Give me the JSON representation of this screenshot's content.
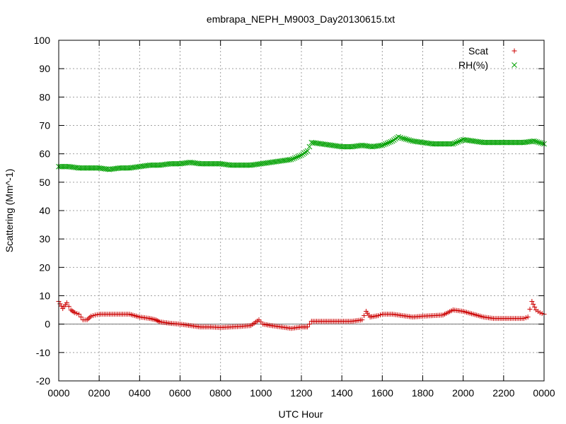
{
  "chart_data": {
    "type": "scatter",
    "title": "embrapa_NEPH_M9003_Day20130615.txt",
    "xlabel": "UTC Hour",
    "ylabel": "Scattering (Mm^-1)",
    "xlim": [
      0,
      24
    ],
    "ylim": [
      -20,
      100
    ],
    "x_ticks": [
      0,
      2,
      4,
      6,
      8,
      10,
      12,
      14,
      16,
      18,
      20,
      22,
      24
    ],
    "x_tick_labels": [
      "0000",
      "0200",
      "0400",
      "0600",
      "0800",
      "1000",
      "1200",
      "1400",
      "1600",
      "1800",
      "2000",
      "2200",
      "0000"
    ],
    "y_ticks": [
      -20,
      -10,
      0,
      10,
      20,
      30,
      40,
      50,
      60,
      70,
      80,
      90,
      100
    ],
    "y_tick_labels": [
      "-20",
      "-10",
      "0",
      "10",
      "20",
      "30",
      "40",
      "50",
      "60",
      "70",
      "80",
      "90",
      "100"
    ],
    "grid": true,
    "legend_position": "top-right",
    "zero_line": true,
    "series": [
      {
        "name": "Scat",
        "marker": "plus",
        "color": "#cc0000",
        "points": [
          [
            0,
            8
          ],
          [
            0.2,
            5.5
          ],
          [
            0.4,
            7.5
          ],
          [
            0.6,
            5
          ],
          [
            0.8,
            4
          ],
          [
            1,
            3.5
          ],
          [
            1.2,
            1.5
          ],
          [
            1.4,
            1.5
          ],
          [
            1.6,
            2.8
          ],
          [
            1.8,
            3.2
          ],
          [
            2,
            3.5
          ],
          [
            2.5,
            3.5
          ],
          [
            3,
            3.5
          ],
          [
            3.5,
            3.5
          ],
          [
            4,
            2.5
          ],
          [
            4.5,
            2
          ],
          [
            4.8,
            1.5
          ],
          [
            5,
            0.8
          ],
          [
            5.5,
            0.3
          ],
          [
            6,
            0
          ],
          [
            6.5,
            -0.5
          ],
          [
            7,
            -1
          ],
          [
            7.5,
            -1
          ],
          [
            8,
            -1.2
          ],
          [
            8.5,
            -1
          ],
          [
            9,
            -0.8
          ],
          [
            9.5,
            -0.5
          ],
          [
            9.9,
            1.5
          ],
          [
            10.1,
            0
          ],
          [
            10.5,
            -0.5
          ],
          [
            11,
            -1
          ],
          [
            11.5,
            -1.5
          ],
          [
            12,
            -1
          ],
          [
            12.3,
            -1
          ],
          [
            12.5,
            1
          ],
          [
            13,
            1
          ],
          [
            13.5,
            1
          ],
          [
            14,
            1
          ],
          [
            14.5,
            1
          ],
          [
            15,
            1.5
          ],
          [
            15.2,
            4.5
          ],
          [
            15.4,
            2.5
          ],
          [
            15.8,
            3
          ],
          [
            16,
            3.5
          ],
          [
            16.5,
            3.5
          ],
          [
            17,
            3
          ],
          [
            17.5,
            2.5
          ],
          [
            18,
            2.8
          ],
          [
            18.5,
            3
          ],
          [
            19,
            3.2
          ],
          [
            19.5,
            5
          ],
          [
            20,
            4.5
          ],
          [
            20.5,
            3.5
          ],
          [
            21,
            2.5
          ],
          [
            21.5,
            2
          ],
          [
            22,
            2
          ],
          [
            22.5,
            2
          ],
          [
            23,
            2
          ],
          [
            23.2,
            2.5
          ],
          [
            23.4,
            8
          ],
          [
            23.6,
            5
          ],
          [
            23.8,
            4
          ],
          [
            24,
            3.5
          ]
        ]
      },
      {
        "name": "RH(%)",
        "marker": "cross",
        "color": "#00a000",
        "points": [
          [
            0,
            55.5
          ],
          [
            0.5,
            55.5
          ],
          [
            1,
            55
          ],
          [
            1.5,
            55
          ],
          [
            2,
            55
          ],
          [
            2.5,
            54.5
          ],
          [
            3,
            55
          ],
          [
            3.5,
            55
          ],
          [
            4,
            55.5
          ],
          [
            4.5,
            56
          ],
          [
            5,
            56
          ],
          [
            5.5,
            56.5
          ],
          [
            6,
            56.5
          ],
          [
            6.5,
            57
          ],
          [
            7,
            56.5
          ],
          [
            7.5,
            56.5
          ],
          [
            8,
            56.5
          ],
          [
            8.5,
            56
          ],
          [
            9,
            56
          ],
          [
            9.5,
            56
          ],
          [
            10,
            56.5
          ],
          [
            10.5,
            57
          ],
          [
            11,
            57.5
          ],
          [
            11.5,
            58
          ],
          [
            12,
            59.5
          ],
          [
            12.3,
            61
          ],
          [
            12.5,
            64
          ],
          [
            13,
            63.5
          ],
          [
            13.5,
            63
          ],
          [
            14,
            62.5
          ],
          [
            14.5,
            62.5
          ],
          [
            15,
            63
          ],
          [
            15.5,
            62.5
          ],
          [
            16,
            63
          ],
          [
            16.5,
            64.5
          ],
          [
            16.8,
            66
          ],
          [
            17,
            65.5
          ],
          [
            17.5,
            64.5
          ],
          [
            18,
            64
          ],
          [
            18.5,
            63.5
          ],
          [
            19,
            63.5
          ],
          [
            19.5,
            63.5
          ],
          [
            20,
            65
          ],
          [
            20.5,
            64.5
          ],
          [
            21,
            64
          ],
          [
            21.5,
            64
          ],
          [
            22,
            64
          ],
          [
            22.5,
            64
          ],
          [
            23,
            64
          ],
          [
            23.5,
            64.5
          ],
          [
            24,
            63.5
          ]
        ]
      }
    ]
  }
}
